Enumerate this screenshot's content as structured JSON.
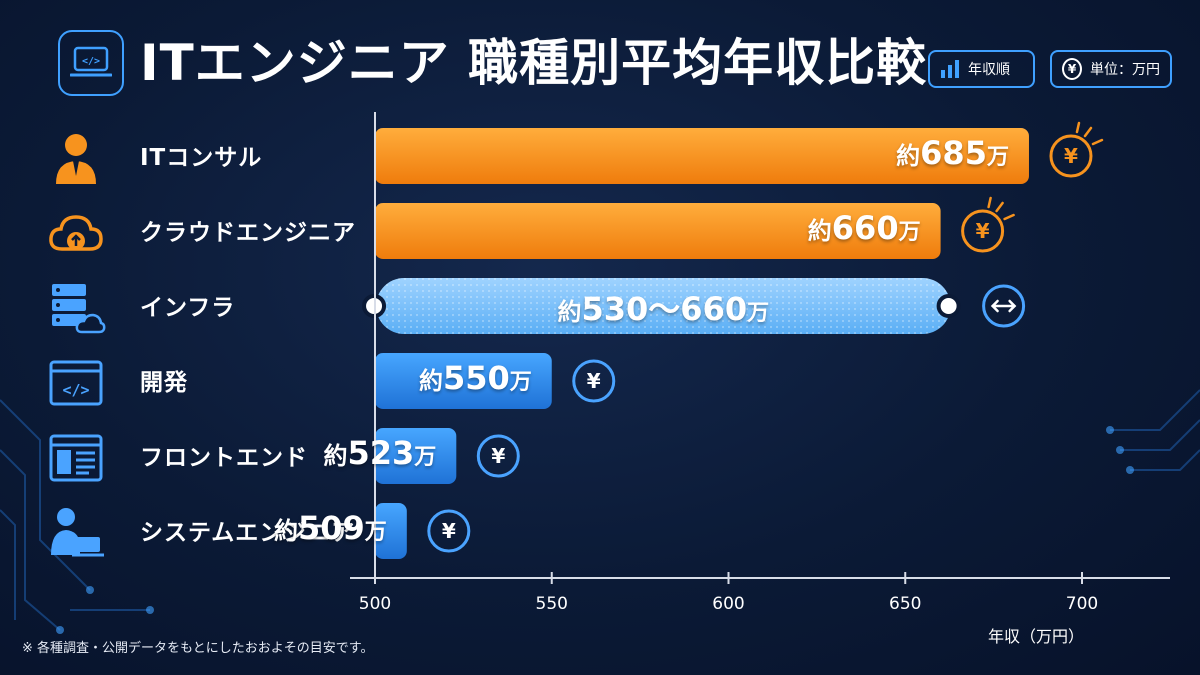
{
  "header": {
    "title": "ITエンジニア 職種別平均年収比較",
    "sort_badge": "年収順",
    "unit_badge": "単位：万円",
    "yen_symbol": "¥"
  },
  "chart_data": {
    "type": "bar",
    "orientation": "horizontal",
    "categories": [
      "ITコンサル",
      "クラウドエンジニア",
      "インフラ",
      "開発",
      "フロントエンド",
      "システムエンジニア"
    ],
    "values": [
      685,
      660,
      [
        530,
        660
      ],
      550,
      523,
      509
    ],
    "bar_labels": [
      "約685万",
      "約660万",
      "約530〜660万",
      "約550万",
      "約523万",
      "約509万"
    ],
    "category_icons": [
      "consultant-person-icon",
      "cloud-upload-icon",
      "server-cloud-icon",
      "code-window-icon",
      "webpage-layout-icon",
      "person-laptop-icon"
    ],
    "bar_colors": [
      "#f7931e",
      "#f7931e",
      "#7cc2ff",
      "#2f8fec",
      "#2f8fec",
      "#2f8fec"
    ],
    "xlabel": "年収（万円）",
    "xlim": [
      500,
      700
    ],
    "xticks": [
      "500",
      "550",
      "600",
      "650",
      "700"
    ],
    "grid": false
  },
  "footnote": "※ 各種調査・公開データをもとにしたおおよその目安です。",
  "colors": {
    "accent_orange": "#f7931e",
    "accent_blue": "#2f8fec",
    "range_blue": "#7cc2ff",
    "background": "#0b1a36"
  }
}
